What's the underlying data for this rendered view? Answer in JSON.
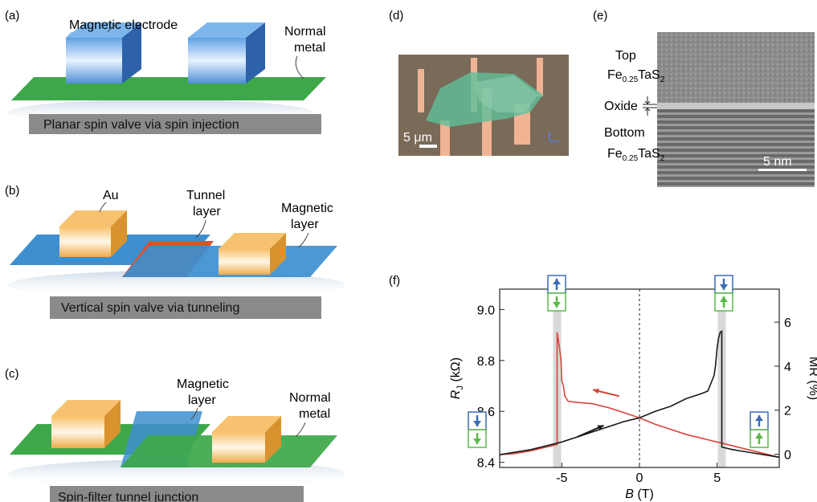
{
  "panels": {
    "a": {
      "tag": "(a)",
      "label_electrode": "Magnetic electrode",
      "label_normal_1": "Normal",
      "label_normal_2": "metal",
      "caption": "Planar spin valve via spin injection"
    },
    "b": {
      "tag": "(b)",
      "label_au": "Au",
      "label_tunnel_1": "Tunnel",
      "label_tunnel_2": "layer",
      "label_magnetic_1": "Magnetic",
      "label_magnetic_2": "layer",
      "caption": "Vertical spin valve via tunneling"
    },
    "c": {
      "tag": "(c)",
      "label_magnetic_1": "Magnetic",
      "label_magnetic_2": "layer",
      "label_normal_1": "Normal",
      "label_normal_2": "metal",
      "caption": "Spin-filter tunnel junction"
    },
    "d": {
      "tag": "(d)",
      "scale_bar": "5 μm"
    },
    "e": {
      "tag": "(e)",
      "label_top": "Top",
      "label_top_formula": "Fe",
      "label_top_sub1": "0.25",
      "label_top_mid": "TaS",
      "label_top_sub2": "2",
      "label_oxide": "Oxide",
      "label_bottom": "Bottom",
      "label_bottom_formula": "Fe",
      "label_bottom_sub1": "0.25",
      "label_bottom_mid": "TaS",
      "label_bottom_sub2": "2",
      "scale_bar": "5 nm"
    },
    "f": {
      "tag": "(f)"
    }
  },
  "colors": {
    "green": "#3da84a",
    "blue_electrode": "#3a7fcf",
    "gold": "#f2b24e",
    "red_layer": "#e0502a",
    "caption_bar": "#8a8a8a",
    "curve_red": "#d9443a",
    "curve_black": "#1a1a1a",
    "arrow_blue": "#3d6bb5",
    "arrow_green": "#5ab84a"
  },
  "chart_data": {
    "type": "line",
    "title": "",
    "xlabel_italic": "B",
    "xlabel_unit": "(T)",
    "ylabel_italic": "R",
    "ylabel_sub": "J",
    "ylabel_unit": "(kΩ)",
    "y2label": "MR (%)",
    "xlim": [
      -9,
      9
    ],
    "ylim": [
      8.38,
      9.08
    ],
    "y2lim": [
      -0.6,
      7.5
    ],
    "x_ticks": [
      "-5",
      "0",
      "5"
    ],
    "x_tick_values": [
      -5,
      0,
      5
    ],
    "y_ticks": [
      "8.4",
      "8.6",
      "8.8",
      "9.0"
    ],
    "y_tick_values": [
      8.4,
      8.6,
      8.8,
      9.0
    ],
    "y2_ticks": [
      "0",
      "2",
      "4",
      "6"
    ],
    "y2_tick_values": [
      0,
      2,
      4,
      6
    ],
    "grid": false,
    "switch_fields": [
      -5.3,
      5.3
    ],
    "series": [
      {
        "color": "#d9443a",
        "x": [
          9,
          7,
          5,
          3,
          1,
          0,
          -1,
          -2,
          -3,
          -4,
          -4.6,
          -4.8,
          -4.9,
          -5.0,
          -5.05,
          -5.15,
          -5.25,
          -5.3,
          -5.3,
          -6,
          -7,
          -8,
          -9
        ],
        "y": [
          8.42,
          8.45,
          8.48,
          8.51,
          8.55,
          8.575,
          8.595,
          8.615,
          8.63,
          8.635,
          8.64,
          8.66,
          8.7,
          8.72,
          8.8,
          8.85,
          8.89,
          8.91,
          8.47,
          8.46,
          8.445,
          8.435,
          8.43
        ]
      },
      {
        "color": "#1a1a1a",
        "x": [
          -9,
          -7,
          -5,
          -3,
          -1,
          0,
          1,
          2,
          3,
          4,
          4.4,
          4.6,
          4.8,
          4.9,
          5.0,
          5.1,
          5.2,
          5.3,
          5.3,
          6,
          7,
          8,
          9
        ],
        "y": [
          8.43,
          8.45,
          8.48,
          8.52,
          8.56,
          8.575,
          8.6,
          8.62,
          8.65,
          8.67,
          8.68,
          8.71,
          8.74,
          8.78,
          8.85,
          8.89,
          8.91,
          8.915,
          8.46,
          8.45,
          8.44,
          8.43,
          8.42
        ]
      }
    ],
    "arrows": [
      {
        "color": "#d9443a",
        "from": [
          -1.3,
          8.66
        ],
        "to": [
          -3.0,
          8.685
        ]
      },
      {
        "color": "#1a1a1a",
        "from": [
          -4.0,
          8.5
        ],
        "to": [
          -2.3,
          8.545
        ]
      }
    ]
  }
}
